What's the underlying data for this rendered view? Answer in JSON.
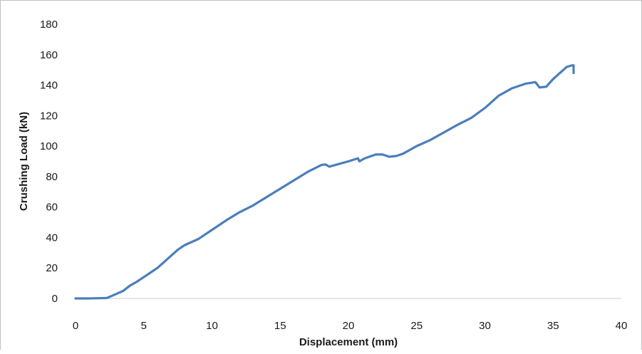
{
  "chart_data": {
    "type": "line",
    "title": "",
    "xlabel": "Displacement (mm)",
    "ylabel": "Crushing Load (kN)",
    "xlim": [
      0,
      40
    ],
    "ylim": [
      0,
      180
    ],
    "x_ticks": [
      0,
      5,
      10,
      15,
      20,
      25,
      30,
      35,
      40
    ],
    "y_ticks": [
      0,
      20,
      40,
      60,
      80,
      100,
      120,
      140,
      160,
      180
    ],
    "x_tick_labels": [
      "0",
      "5",
      "10",
      "15",
      "20",
      "25",
      "30",
      "35",
      "40"
    ],
    "y_tick_labels": [
      "0",
      "20",
      "40",
      "60",
      "80",
      "100",
      "120",
      "140",
      "160",
      "180"
    ],
    "grid": false,
    "legend": "none",
    "series": [
      {
        "color": "#4a7ebb",
        "x": [
          0,
          1,
          2.3,
          3,
          3.5,
          4,
          4.5,
          5,
          5.5,
          6,
          6.5,
          7,
          7.5,
          8,
          8.5,
          9,
          9.5,
          10,
          11,
          12,
          13,
          14,
          15,
          16,
          17,
          18,
          18.3,
          18.6,
          19,
          20,
          20.7,
          20.8,
          21.2,
          22,
          22.5,
          23,
          23.5,
          24,
          25,
          26,
          27,
          28,
          29,
          30,
          31,
          32,
          33,
          33.7,
          34,
          34.5,
          35,
          36,
          36.4,
          36.5,
          36.5
        ],
        "y": [
          0,
          0,
          0.3,
          3,
          5,
          8.5,
          11,
          14,
          17,
          20,
          24,
          28,
          32,
          35,
          37,
          39,
          42,
          45,
          51,
          56.5,
          61,
          66.5,
          72,
          77.5,
          83,
          87.5,
          88,
          86.5,
          87.5,
          90,
          92,
          90,
          92,
          94.5,
          94.5,
          93,
          93.5,
          95,
          100,
          104,
          109,
          114,
          118.5,
          125,
          133,
          138,
          141,
          142,
          138.5,
          139,
          144,
          152,
          153,
          153,
          148
        ]
      }
    ]
  }
}
